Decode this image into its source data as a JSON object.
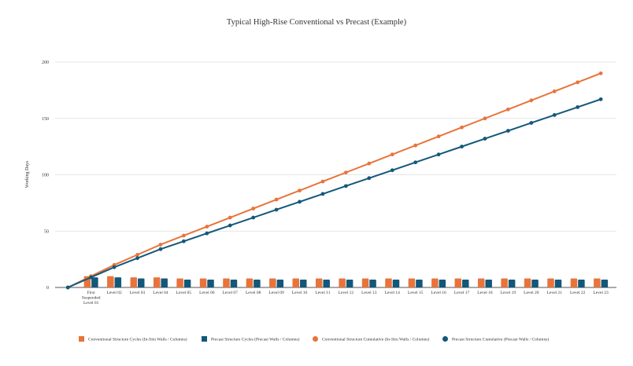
{
  "chart_data": {
    "type": "bar+line",
    "title": "Typical High-Rise Conventional vs Precast (Example)",
    "xlabel": "",
    "ylabel": "Working Days",
    "ylim": [
      0,
      200
    ],
    "yticks": [
      0,
      50,
      100,
      150,
      200
    ],
    "grid": true,
    "legend_position": "bottom",
    "categories": [
      "",
      "First Suspended Level 01",
      "Level  02",
      "Level 03",
      "Level 04",
      "Level 05",
      "Level 06",
      "Level 07",
      "Level 08",
      "Level 09",
      "Level 10",
      "Level 11",
      "Level 12",
      "Level 13",
      "Level 14",
      "Level 15",
      "Level 16",
      "Level 17",
      "Level 18",
      "Level 19",
      "Level 20",
      "Level 21",
      "Level 22",
      "Level 23"
    ],
    "series": [
      {
        "name": "Conventional Structure Cycles (In-Situ Walls / Columns)",
        "kind": "bar",
        "color": "#e8743b",
        "values": [
          null,
          10,
          10,
          9,
          9,
          8,
          8,
          8,
          8,
          8,
          8,
          8,
          8,
          8,
          8,
          8,
          8,
          8,
          8,
          8,
          8,
          8,
          8,
          8
        ]
      },
      {
        "name": "Precast Structure Cycles (Precast Walls / Columns)",
        "kind": "bar",
        "color": "#13587a",
        "values": [
          null,
          9,
          9,
          8,
          8,
          7,
          7,
          7,
          7,
          7,
          7,
          7,
          7,
          7,
          7,
          7,
          7,
          7,
          7,
          7,
          7,
          7,
          7,
          7
        ]
      },
      {
        "name": "Conventional Structure Cumulative (In-Situ Walls / Columns)",
        "kind": "line",
        "color": "#e8743b",
        "values": [
          0,
          10,
          20,
          29,
          38,
          46,
          54,
          62,
          70,
          78,
          86,
          94,
          102,
          110,
          118,
          126,
          134,
          142,
          150,
          158,
          166,
          174,
          182,
          190
        ]
      },
      {
        "name": "Precast Structure Cumulative (Precast Walls / Columns)",
        "kind": "line",
        "color": "#13587a",
        "values": [
          0,
          9,
          18,
          26,
          34,
          41,
          48,
          55,
          62,
          69,
          76,
          83,
          90,
          97,
          104,
          111,
          118,
          125,
          132,
          139,
          146,
          153,
          160,
          167
        ]
      }
    ]
  }
}
